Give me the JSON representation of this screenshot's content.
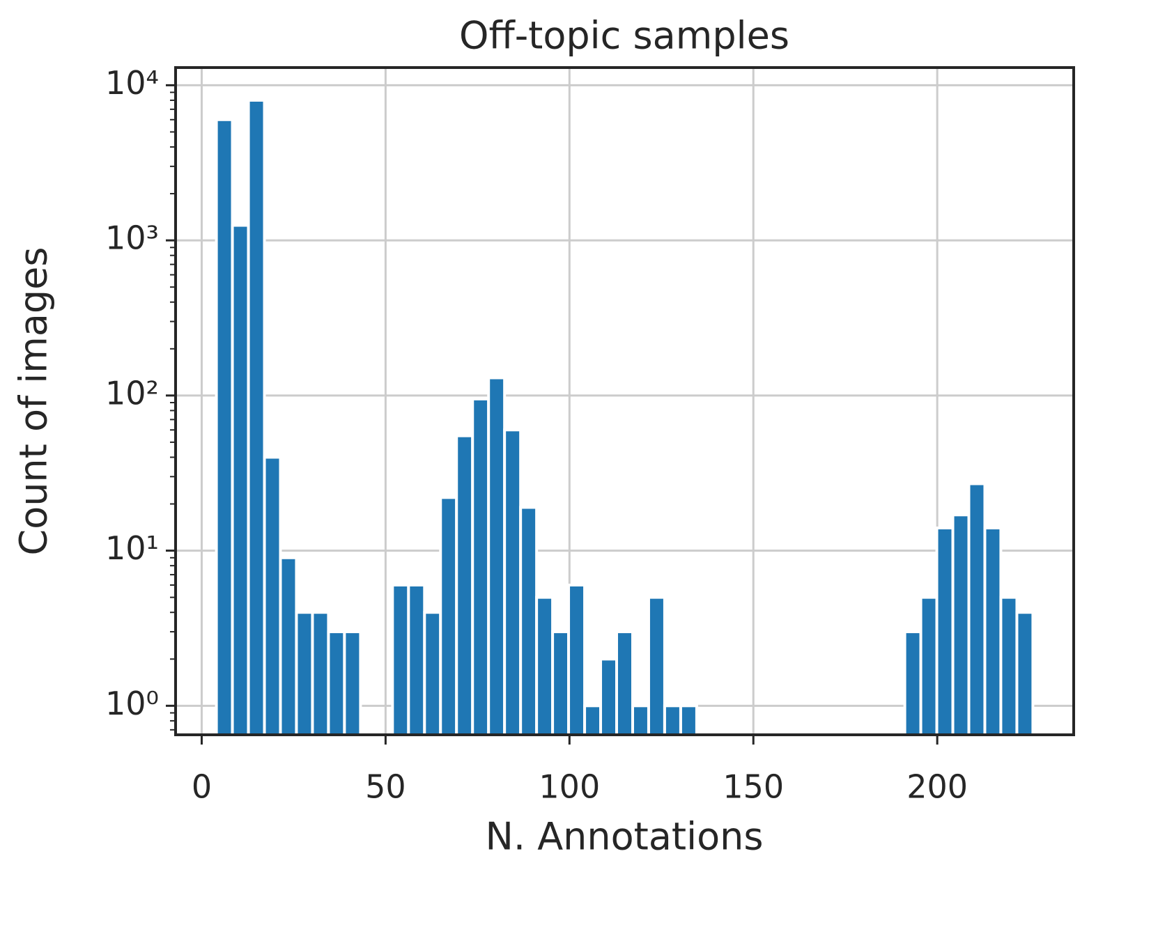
{
  "chart_data": {
    "type": "histogram",
    "title": "Off-topic samples",
    "x_label": "N. Annotations",
    "y_label": "Count of images",
    "color": "#1f77b4",
    "log_y": true,
    "grid": true,
    "bins": [
      4.0,
      8.35,
      12.71,
      17.06,
      21.41,
      25.76,
      30.12,
      34.47,
      38.82,
      43.18,
      47.53,
      51.88,
      56.24,
      60.59,
      64.94,
      69.29,
      73.65,
      78.0,
      82.35,
      86.71,
      91.06,
      95.41,
      99.76,
      104.12,
      108.47,
      112.82,
      117.18,
      121.53,
      125.88,
      130.24,
      134.59,
      138.94,
      143.29,
      147.65,
      152.0,
      156.35,
      160.71,
      165.06,
      169.41,
      173.76,
      178.12,
      182.47,
      186.82,
      191.18,
      195.53,
      199.88,
      204.24,
      208.59,
      212.94,
      217.29,
      221.65,
      226.0
    ],
    "counts": [
      6000,
      1250,
      8000,
      40,
      9,
      4,
      4,
      3,
      3,
      0,
      0,
      6,
      6,
      4,
      22,
      55,
      95,
      130,
      60,
      19,
      5,
      3,
      6,
      1,
      2,
      3,
      1,
      5,
      1,
      1,
      0,
      0,
      0,
      0,
      0,
      0,
      0,
      0,
      0,
      0,
      0,
      0,
      0,
      3,
      5,
      14,
      17,
      27,
      14,
      5,
      4
    ],
    "xlim": [
      -7.1,
      237.1
    ],
    "xticks": [
      0,
      50,
      100,
      150,
      200
    ],
    "ylim": [
      0.65,
      13000
    ],
    "yticks": [
      {
        "value": 1,
        "label": "10⁰"
      },
      {
        "value": 10,
        "label": "10¹"
      },
      {
        "value": 100,
        "label": "10²"
      },
      {
        "value": 1000,
        "label": "10³"
      },
      {
        "value": 10000,
        "label": "10⁴"
      }
    ],
    "yminorticks": [
      0.7,
      0.8,
      0.9,
      2,
      3,
      4,
      5,
      6,
      7,
      8,
      9,
      20,
      30,
      40,
      50,
      60,
      70,
      80,
      90,
      200,
      300,
      400,
      500,
      600,
      700,
      800,
      900,
      2000,
      3000,
      4000,
      5000,
      6000,
      7000,
      8000,
      9000
    ]
  }
}
